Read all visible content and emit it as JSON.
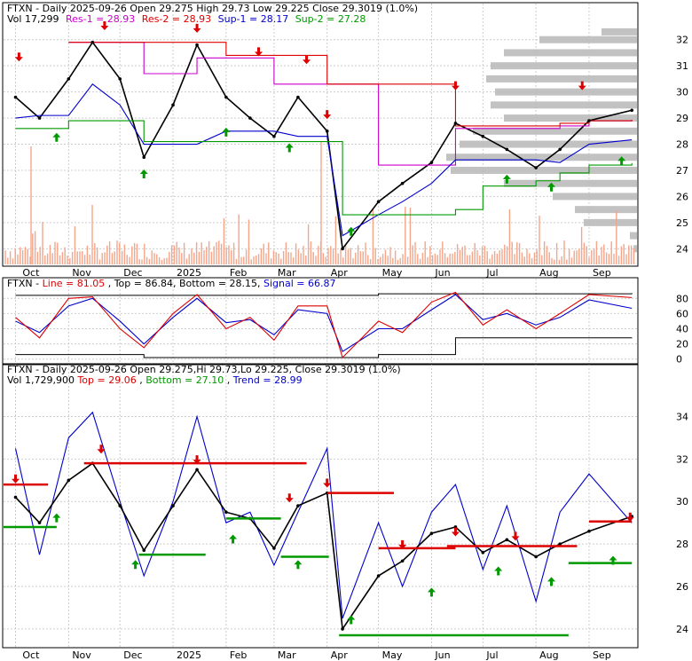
{
  "panels": {
    "top": {
      "title": "FTXN - Daily 2025-09-26 Open 29.275  High 29.73  Low 29.225  Close 29.3019 (1.0%)",
      "legend": [
        {
          "label": "Vol 17,299",
          "color": "#000000"
        },
        {
          "label": "Res-1 = 28.93",
          "color": "#cc00cc"
        },
        {
          "label": "Res-2 = 28.93",
          "color": "#dd0000"
        },
        {
          "label": "Sup-1 = 28.17",
          "color": "#0000cc"
        },
        {
          "label": "Sup-2 = 27.28",
          "color": "#009900"
        }
      ],
      "yticks": [
        "32",
        "31",
        "30",
        "29",
        "28",
        "27",
        "26",
        "25",
        "24"
      ]
    },
    "stoch": {
      "legend": [
        {
          "label": "FTXN - ",
          "color": "#000000"
        },
        {
          "label": "Line = 81.05",
          "color": "#dd0000"
        },
        {
          "label": ", Top = 86.84, Bottom = 28.15, ",
          "color": "#000000"
        },
        {
          "label": "Signal = 66.87",
          "color": "#0000cc"
        }
      ],
      "yticks": [
        "80",
        "60",
        "40",
        "20",
        "0"
      ]
    },
    "bottom": {
      "title": "FTXN - Daily 2025-09-26 Open 29.275,Hi 29.73,Lo 29.225, Close 29.3019 (1.0%)",
      "legend": [
        {
          "label": "Vol 1,729,900 ",
          "color": "#000000"
        },
        {
          "label": "Top = 29.06",
          "color": "#dd0000"
        },
        {
          "label": ", ",
          "color": "#000000"
        },
        {
          "label": "Bottom = 27.10",
          "color": "#009900"
        },
        {
          "label": ", ",
          "color": "#000000"
        },
        {
          "label": "Trend = 28.99",
          "color": "#0000cc"
        }
      ],
      "yticks": [
        "34",
        "32",
        "30",
        "28",
        "26",
        "24"
      ]
    }
  },
  "x_labels": [
    "Oct",
    "Nov",
    "Dec",
    "2025",
    "Feb",
    "Mar",
    "Apr",
    "May",
    "Jun",
    "Jul",
    "Aug",
    "Sep"
  ],
  "colors": {
    "price": "#000000",
    "res1": "#cc00cc",
    "res2": "#dd0000",
    "sup1": "#0000cc",
    "sup2": "#009900",
    "volume": "#f4a58a",
    "volume_profile": "#bbbbbb",
    "stoch_line": "#dd0000",
    "stoch_signal": "#0000cc",
    "grid": "#cccccc"
  },
  "chart_data": {
    "type": "line",
    "title": "FTXN - Daily 2025-09-26 Open 29.275  High 29.73  Low 29.225  Close 29.3019 (1.0%)",
    "last_bar": {
      "date": "2025-09-26",
      "open": 29.275,
      "high": 29.73,
      "low": 29.225,
      "close": 29.3019,
      "change_pct": 1.0
    },
    "x": [
      "2024-10-01",
      "2024-10-15",
      "2024-11-01",
      "2024-11-15",
      "2024-12-01",
      "2024-12-15",
      "2025-01-01",
      "2025-01-15",
      "2025-02-01",
      "2025-02-15",
      "2025-03-01",
      "2025-03-15",
      "2025-04-01",
      "2025-04-10",
      "2025-05-01",
      "2025-05-15",
      "2025-06-01",
      "2025-06-15",
      "2025-07-01",
      "2025-07-15",
      "2025-08-01",
      "2025-08-15",
      "2025-09-01",
      "2025-09-26"
    ],
    "series": [
      {
        "name": "Close",
        "values": [
          29.8,
          29.0,
          30.5,
          31.9,
          30.5,
          27.5,
          29.5,
          31.8,
          29.8,
          29.0,
          28.3,
          29.8,
          28.5,
          24.0,
          25.8,
          26.5,
          27.3,
          28.8,
          28.3,
          27.8,
          27.1,
          27.8,
          28.9,
          29.3
        ]
      },
      {
        "name": "Res-1",
        "values": [
          null,
          null,
          31.9,
          31.9,
          31.9,
          30.7,
          30.7,
          31.3,
          31.3,
          31.3,
          30.3,
          30.3,
          30.3,
          30.3,
          27.2,
          27.2,
          27.2,
          28.6,
          28.6,
          28.6,
          28.6,
          28.7,
          28.9,
          28.93
        ]
      },
      {
        "name": "Res-2",
        "values": [
          null,
          null,
          31.9,
          31.9,
          31.9,
          31.9,
          31.9,
          31.9,
          31.4,
          31.4,
          31.4,
          31.4,
          30.3,
          30.3,
          30.3,
          30.3,
          30.3,
          28.7,
          28.7,
          28.7,
          28.7,
          28.8,
          28.9,
          28.93
        ]
      },
      {
        "name": "Sup-1",
        "values": [
          29.0,
          29.1,
          29.1,
          30.3,
          29.5,
          28.0,
          28.0,
          28.0,
          28.5,
          28.5,
          28.5,
          28.3,
          28.3,
          24.5,
          25.3,
          25.8,
          26.5,
          27.4,
          27.4,
          27.4,
          27.4,
          27.3,
          28.0,
          28.17
        ]
      },
      {
        "name": "Sup-2",
        "values": [
          28.6,
          28.6,
          28.9,
          28.9,
          28.9,
          28.1,
          28.1,
          28.1,
          28.1,
          28.1,
          28.1,
          28.1,
          28.1,
          25.3,
          25.3,
          25.3,
          25.3,
          25.5,
          26.4,
          26.4,
          26.6,
          26.9,
          27.2,
          27.28
        ]
      }
    ],
    "ylim": [
      23.4,
      32.5
    ],
    "stochastic": {
      "x": [
        "2024-10-01",
        "2024-10-15",
        "2024-11-01",
        "2024-11-15",
        "2024-12-01",
        "2024-12-15",
        "2025-01-01",
        "2025-01-15",
        "2025-02-01",
        "2025-02-15",
        "2025-03-01",
        "2025-03-15",
        "2025-04-01",
        "2025-04-10",
        "2025-05-01",
        "2025-05-15",
        "2025-06-01",
        "2025-06-15",
        "2025-07-01",
        "2025-07-15",
        "2025-08-01",
        "2025-08-15",
        "2025-09-01",
        "2025-09-26"
      ],
      "line": [
        55,
        28,
        80,
        82,
        40,
        15,
        60,
        85,
        40,
        55,
        25,
        70,
        70,
        2,
        50,
        35,
        75,
        88,
        45,
        65,
        40,
        60,
        85,
        81.05
      ],
      "signal": [
        50,
        35,
        70,
        80,
        50,
        20,
        55,
        80,
        48,
        52,
        32,
        65,
        60,
        10,
        40,
        40,
        65,
        85,
        52,
        60,
        45,
        55,
        78,
        66.87
      ],
      "top": [
        84,
        84,
        84,
        84,
        84,
        84,
        84,
        84,
        84,
        84,
        84,
        84,
        84,
        84,
        86,
        86,
        86,
        86,
        86,
        86,
        86,
        86,
        86,
        86.84
      ],
      "bottom": [
        6,
        6,
        6,
        6,
        6,
        2,
        2,
        2,
        2,
        2,
        2,
        2,
        2,
        2,
        6,
        6,
        6,
        28,
        28,
        28,
        28,
        28,
        28,
        28.15
      ],
      "ylim": [
        -5,
        92
      ]
    },
    "bottom_panel": {
      "x": [
        "2024-10-01",
        "2024-10-15",
        "2024-11-01",
        "2024-11-15",
        "2024-12-01",
        "2024-12-15",
        "2025-01-01",
        "2025-01-15",
        "2025-02-01",
        "2025-02-15",
        "2025-03-01",
        "2025-03-15",
        "2025-04-01",
        "2025-04-10",
        "2025-05-01",
        "2025-05-15",
        "2025-06-01",
        "2025-06-15",
        "2025-07-01",
        "2025-07-15",
        "2025-08-01",
        "2025-08-15",
        "2025-09-01",
        "2025-09-26"
      ],
      "close": [
        30.2,
        29.0,
        31.0,
        31.8,
        29.8,
        27.7,
        29.8,
        31.5,
        29.5,
        29.2,
        27.8,
        29.8,
        30.4,
        24.0,
        26.5,
        27.2,
        28.5,
        28.8,
        27.6,
        28.2,
        27.4,
        28.0,
        28.6,
        29.3
      ],
      "trend": [
        32.5,
        27.5,
        33.0,
        34.2,
        30.0,
        26.5,
        30.0,
        34.0,
        29.0,
        29.5,
        27.0,
        29.5,
        32.5,
        24.5,
        29.0,
        26.0,
        29.5,
        30.8,
        26.8,
        29.8,
        25.3,
        29.5,
        31.3,
        28.99
      ],
      "ylim": [
        23.2,
        35.4
      ]
    }
  }
}
